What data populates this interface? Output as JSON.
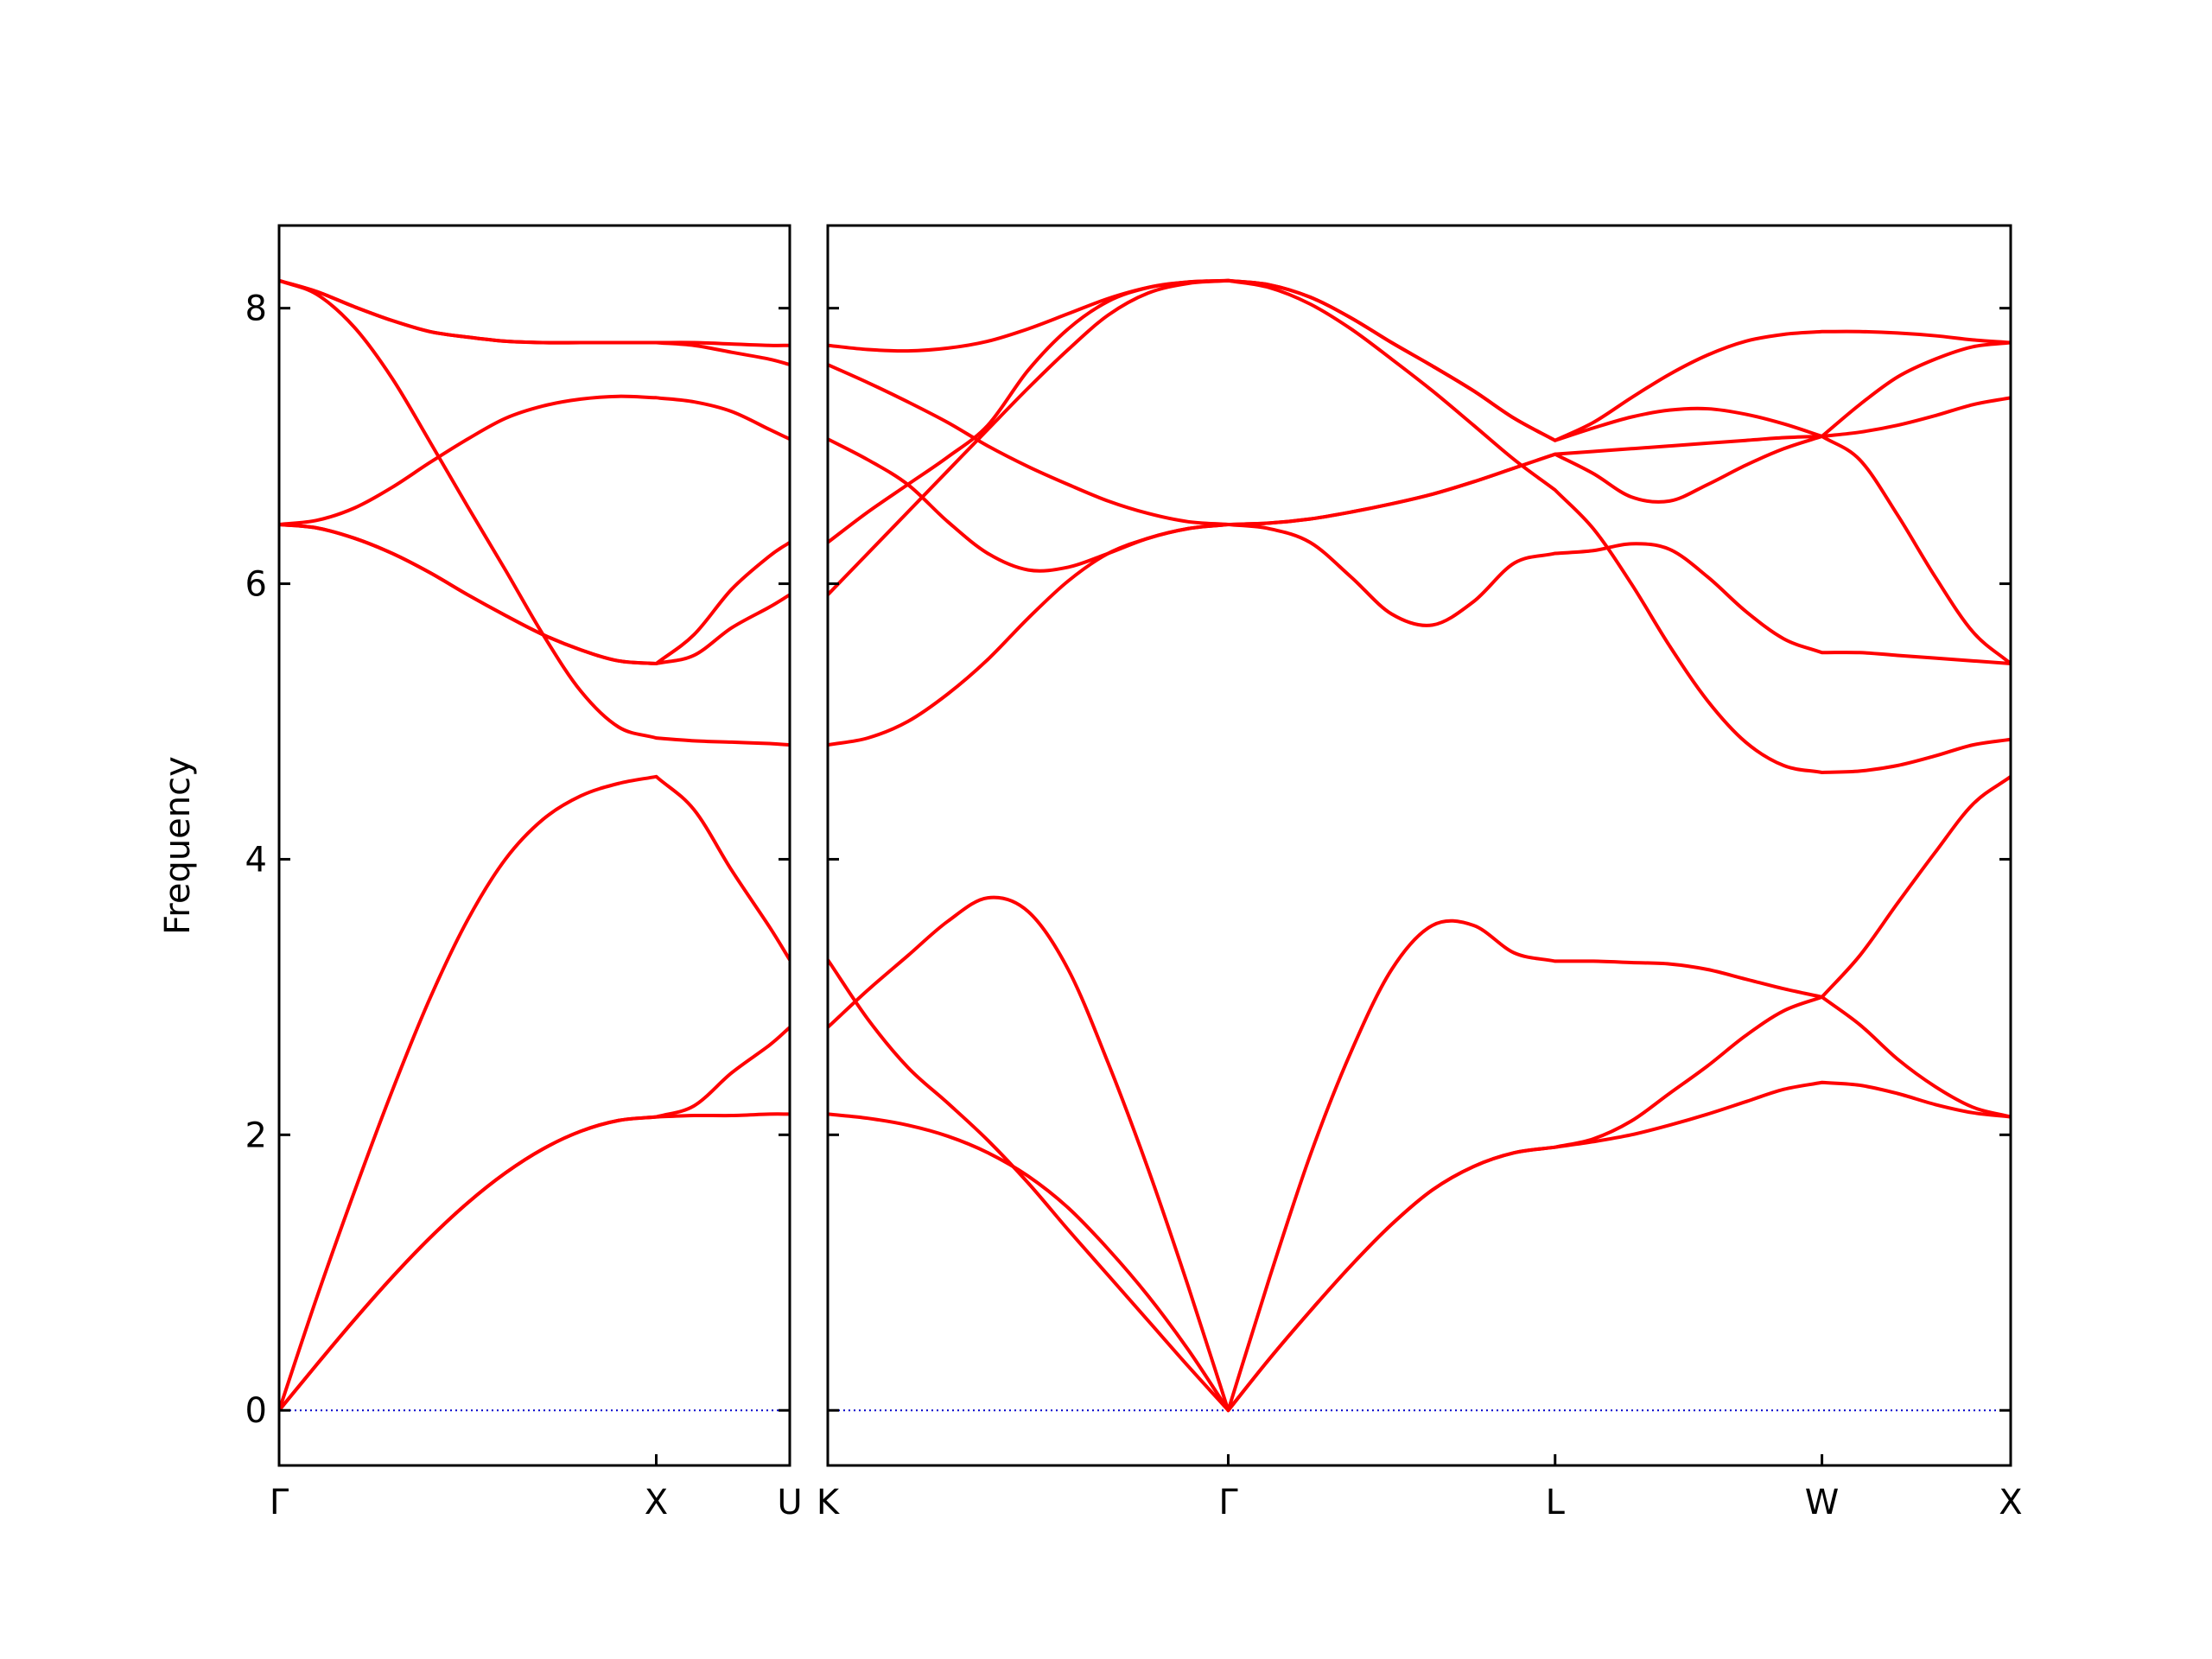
{
  "chart_data": [
    {
      "type": "line",
      "ylabel": "Frequency",
      "color": "#ff0000",
      "x": [
        0,
        0.1,
        0.2,
        0.3,
        0.4,
        0.5,
        0.6,
        0.7,
        0.8,
        0.9,
        1.0,
        1.1,
        1.2,
        1.3,
        1.354
      ],
      "series": [
        {
          "values": [
            0,
            0.333,
            0.658,
            0.967,
            1.252,
            1.506,
            1.723,
            1.898,
            2.026,
            2.104,
            2.13,
            2.14,
            2.14,
            2.15,
            2.15
          ]
        },
        {
          "values": [
            0,
            0.333,
            0.658,
            0.967,
            1.252,
            1.506,
            1.723,
            1.898,
            2.026,
            2.104,
            2.13,
            2.21,
            2.45,
            2.65,
            2.78
          ]
        },
        {
          "values": [
            0,
            0.82,
            1.59,
            2.32,
            2.99,
            3.56,
            4.0,
            4.29,
            4.46,
            4.55,
            4.6,
            4.36,
            3.92,
            3.51,
            3.27
          ]
        },
        {
          "values": [
            6.43,
            6.405,
            6.33,
            6.22,
            6.08,
            5.92,
            5.77,
            5.63,
            5.52,
            5.44,
            5.42,
            5.48,
            5.68,
            5.83,
            5.92
          ]
        },
        {
          "values": [
            6.43,
            6.405,
            6.33,
            6.22,
            6.08,
            5.92,
            5.77,
            5.63,
            5.52,
            5.44,
            5.42,
            5.63,
            5.96,
            6.2,
            6.3
          ]
        },
        {
          "values": [
            6.43,
            6.46,
            6.55,
            6.7,
            6.88,
            7.05,
            7.2,
            7.29,
            7.34,
            7.36,
            7.35,
            7.32,
            7.25,
            7.12,
            7.05
          ]
        },
        {
          "values": [
            8.2,
            8.1,
            7.86,
            7.49,
            7.03,
            6.56,
            6.1,
            5.63,
            5.22,
            4.96,
            4.88,
            4.86,
            4.85,
            4.84,
            4.83
          ]
        },
        {
          "values": [
            8.2,
            8.12,
            8.01,
            7.91,
            7.83,
            7.79,
            7.76,
            7.75,
            7.75,
            7.75,
            7.75,
            7.75,
            7.74,
            7.73,
            7.73
          ]
        },
        {
          "values": [
            8.2,
            8.12,
            8.01,
            7.91,
            7.83,
            7.79,
            7.76,
            7.75,
            7.75,
            7.75,
            7.75,
            7.73,
            7.68,
            7.63,
            7.59
          ]
        }
      ],
      "xlim": [
        0,
        1.354
      ],
      "ylim": [
        -0.4,
        8.6
      ],
      "yticks": [
        0,
        2,
        4,
        6,
        8
      ],
      "show_ytick_labels": true,
      "xticks": [
        {
          "value": 0,
          "label": "Γ"
        },
        {
          "value": 1.0,
          "label": "X"
        },
        {
          "value": 1.354,
          "label": "U"
        }
      ],
      "reference_line": {
        "y": 0,
        "color": "#0000cc"
      }
    },
    {
      "type": "line",
      "color": "#ff0000",
      "x": [
        1.354,
        1.46,
        1.566,
        1.672,
        1.778,
        1.885,
        1.991,
        2.097,
        2.203,
        2.309,
        2.415,
        2.523,
        2.632,
        2.74,
        2.848,
        2.956,
        3.065,
        3.173,
        3.281,
        3.382,
        3.483,
        3.584,
        3.685,
        3.786,
        3.887,
        3.988,
        4.088,
        4.188,
        4.288,
        4.388,
        4.488
      ],
      "series": [
        {
          "values": [
            2.15,
            2.12,
            2.07,
            1.99,
            1.87,
            1.7,
            1.47,
            1.17,
            0.83,
            0.44,
            0,
            0.37,
            0.72,
            1.05,
            1.35,
            1.6,
            1.77,
            1.87,
            1.91,
            1.95,
            2.0,
            2.07,
            2.15,
            2.24,
            2.33,
            2.38,
            2.36,
            2.3,
            2.22,
            2.16,
            2.13
          ]
        },
        {
          "values": [
            2.78,
            3.05,
            3.3,
            3.55,
            3.72,
            3.62,
            3.2,
            2.52,
            1.75,
            0.9,
            0,
            0.37,
            0.72,
            1.05,
            1.35,
            1.6,
            1.77,
            1.87,
            1.91,
            1.97,
            2.1,
            2.3,
            2.5,
            2.72,
            2.9,
            3.0,
            2.8,
            2.55,
            2.35,
            2.2,
            2.13
          ]
        },
        {
          "values": [
            3.27,
            2.84,
            2.49,
            2.23,
            1.96,
            1.65,
            1.31,
            0.98,
            0.65,
            0.32,
            0,
            0.95,
            1.85,
            2.6,
            3.2,
            3.52,
            3.52,
            3.32,
            3.26,
            3.26,
            3.25,
            3.24,
            3.2,
            3.13,
            3.06,
            3.0,
            3.3,
            3.68,
            4.05,
            4.4,
            4.6
          ]
        },
        {
          "values": [
            5.92,
            6.22,
            6.52,
            6.82,
            7.12,
            7.42,
            7.7,
            7.95,
            8.11,
            8.18,
            8.2,
            8.15,
            8.03,
            7.85,
            7.63,
            7.4,
            7.15,
            6.9,
            6.68,
            6.4,
            6.0,
            5.55,
            5.15,
            4.85,
            4.68,
            4.63,
            4.64,
            4.68,
            4.75,
            4.83,
            4.87
          ]
        },
        {
          "values": [
            6.3,
            6.52,
            6.72,
            6.92,
            7.15,
            7.55,
            7.85,
            8.05,
            8.15,
            8.19,
            8.2,
            8.17,
            8.08,
            7.93,
            7.75,
            7.58,
            7.4,
            7.2,
            7.04,
            7.13,
            7.21,
            7.26,
            7.27,
            7.23,
            7.16,
            7.07,
            7.3,
            7.5,
            7.63,
            7.72,
            7.75
          ]
        },
        {
          "values": [
            7.05,
            6.9,
            6.72,
            6.45,
            6.22,
            6.1,
            6.12,
            6.22,
            6.33,
            6.4,
            6.43,
            6.44,
            6.47,
            6.52,
            6.58,
            6.65,
            6.74,
            6.84,
            6.94,
            6.96,
            6.98,
            7.0,
            7.02,
            7.04,
            7.06,
            7.07,
            7.1,
            7.15,
            7.22,
            7.3,
            7.35
          ]
        },
        {
          "values": [
            4.83,
            4.88,
            5.0,
            5.2,
            5.45,
            5.75,
            6.02,
            6.22,
            6.33,
            6.4,
            6.43,
            6.4,
            6.3,
            6.05,
            5.78,
            5.7,
            5.87,
            6.15,
            6.22,
            6.24,
            6.29,
            6.25,
            6.05,
            5.8,
            5.6,
            5.5,
            5.5,
            5.48,
            5.46,
            5.44,
            5.42
          ]
        },
        {
          "values": [
            7.73,
            7.7,
            7.69,
            7.71,
            7.76,
            7.85,
            7.96,
            8.07,
            8.15,
            8.19,
            8.2,
            8.17,
            8.08,
            7.93,
            7.75,
            7.58,
            7.4,
            7.2,
            7.04,
            7.17,
            7.35,
            7.52,
            7.66,
            7.76,
            7.81,
            7.83,
            7.83,
            7.82,
            7.8,
            7.77,
            7.75
          ]
        },
        {
          "values": [
            7.59,
            7.46,
            7.32,
            7.17,
            7.0,
            6.85,
            6.72,
            6.6,
            6.51,
            6.45,
            6.43,
            6.44,
            6.47,
            6.52,
            6.58,
            6.65,
            6.74,
            6.84,
            6.94,
            6.8,
            6.63,
            6.6,
            6.72,
            6.86,
            6.98,
            7.07,
            6.9,
            6.5,
            6.05,
            5.65,
            5.42
          ]
        }
      ],
      "xlim": [
        1.354,
        4.488
      ],
      "ylim": [
        -0.4,
        8.6
      ],
      "yticks": [
        0,
        2,
        4,
        6,
        8
      ],
      "show_ytick_labels": false,
      "xticks": [
        {
          "value": 1.354,
          "label": "K"
        },
        {
          "value": 2.415,
          "label": "Γ"
        },
        {
          "value": 3.281,
          "label": "L"
        },
        {
          "value": 3.988,
          "label": "W"
        },
        {
          "value": 4.488,
          "label": "X"
        }
      ],
      "reference_line": {
        "y": 0,
        "color": "#0000cc"
      }
    }
  ]
}
